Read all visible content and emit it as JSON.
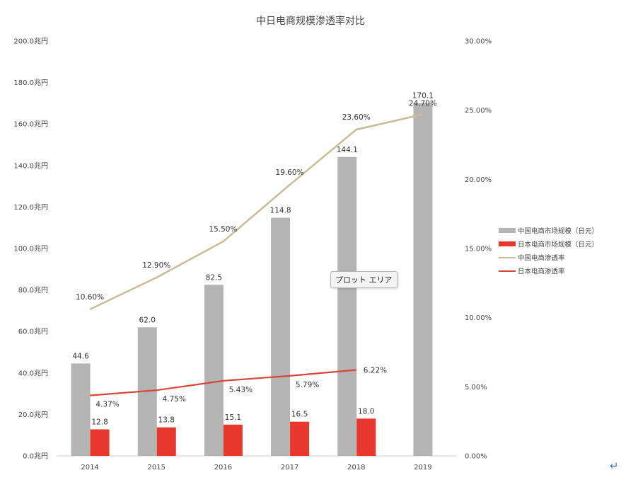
{
  "chart_data": {
    "type": "bar",
    "title": "中日电商规模渗透率对比",
    "categories": [
      "2014",
      "2015",
      "2016",
      "2017",
      "2018",
      "2019"
    ],
    "left_axis": {
      "ylim": [
        0,
        200
      ],
      "ticks": [
        0,
        20,
        40,
        60,
        80,
        100,
        120,
        140,
        160,
        180,
        200
      ],
      "tick_labels": [
        "0.0兆円",
        "20.0兆円",
        "40.0兆円",
        "60.0兆円",
        "80.0兆円",
        "100.0兆円",
        "120.0兆円",
        "140.0兆円",
        "160.0兆円",
        "180.0兆円",
        "200.0兆円"
      ]
    },
    "right_axis": {
      "ylim": [
        0,
        30
      ],
      "ticks": [
        0,
        5,
        10,
        15,
        20,
        25,
        30
      ],
      "tick_labels": [
        "0.00%",
        "5.00%",
        "10.00%",
        "15.00%",
        "20.00%",
        "25.00%",
        "30.00%"
      ]
    },
    "series": [
      {
        "name": "中国电商市场规模（日元）",
        "kind": "bar",
        "axis": "left",
        "color": "#b4b4b4",
        "values": [
          44.6,
          62.0,
          82.5,
          114.8,
          144.1,
          170.1
        ],
        "labels": [
          "44.6",
          "62.0",
          "82.5",
          "114.8",
          "144.1",
          "170.1"
        ]
      },
      {
        "name": "日本电商市场规模（日元）",
        "kind": "bar",
        "axis": "left",
        "color": "#e8382d",
        "values": [
          12.8,
          13.8,
          15.1,
          16.5,
          18.0,
          null
        ],
        "labels": [
          "12.8",
          "13.8",
          "15.1",
          "16.5",
          "18.0",
          null
        ]
      },
      {
        "name": "中国电商渗透率",
        "kind": "line",
        "axis": "right",
        "color": "#c8bc98",
        "values": [
          10.6,
          12.9,
          15.5,
          19.6,
          23.6,
          24.7
        ],
        "labels": [
          "10.60%",
          "12.90%",
          "15.50%",
          "19.60%",
          "23.60%",
          "24.70%"
        ]
      },
      {
        "name": "日本电商渗透率",
        "kind": "line",
        "axis": "right",
        "color": "#d9453a",
        "values": [
          4.37,
          4.75,
          5.43,
          5.79,
          6.22,
          null
        ],
        "labels": [
          "4.37%",
          "4.75%",
          "5.43%",
          "5.79%",
          "6.22%",
          null
        ]
      }
    ],
    "legend_position": "right",
    "grid": false
  },
  "tooltip": {
    "text": "プロット エリア"
  },
  "icons": {
    "corner": "return-arrow-icon",
    "corner_glyph": "↵"
  }
}
